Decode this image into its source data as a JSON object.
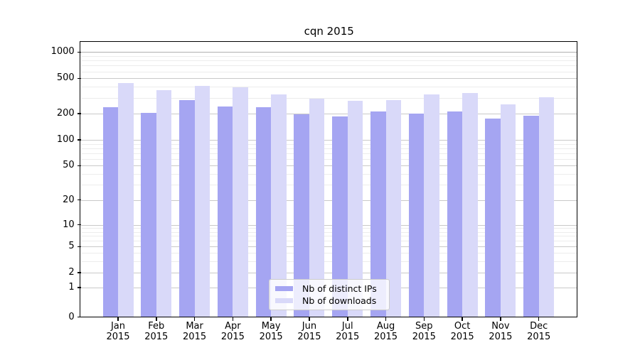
{
  "chart_data": {
    "type": "bar",
    "title": "cqn 2015",
    "categories": [
      "Jan",
      "Feb",
      "Mar",
      "Apr",
      "May",
      "Jun",
      "Jul",
      "Aug",
      "Sep",
      "Oct",
      "Nov",
      "Dec"
    ],
    "year_label": "2015",
    "series": [
      {
        "name": "Nb of distinct IPs",
        "color": "#a5a5f2",
        "values": [
          235,
          202,
          284,
          242,
          236,
          196,
          185,
          210,
          200,
          212,
          174,
          190
        ]
      },
      {
        "name": "Nb of downloads",
        "color": "#d9d9f9",
        "values": [
          438,
          370,
          412,
          394,
          328,
          295,
          278,
          282,
          328,
          342,
          252,
          308
        ]
      }
    ],
    "y_ticks": [
      0,
      1,
      2,
      5,
      10,
      20,
      50,
      100,
      200,
      500,
      1000
    ],
    "y_minor_ticks": [
      3,
      4,
      6,
      7,
      8,
      9,
      30,
      40,
      60,
      70,
      80,
      90,
      300,
      400,
      600,
      700,
      800,
      900
    ],
    "scale": "symlog",
    "grid": true,
    "legend_position": "lower center",
    "xlabel": "",
    "ylabel": ""
  }
}
